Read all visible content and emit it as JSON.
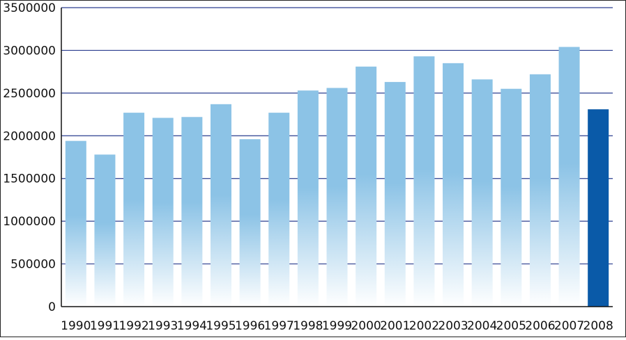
{
  "chart_data": {
    "type": "bar",
    "categories": [
      "1990",
      "1991",
      "1992",
      "1993",
      "1994",
      "1995",
      "1996",
      "1997",
      "1998",
      "1999",
      "2000",
      "2001",
      "2002",
      "2003",
      "2004",
      "2005",
      "2006",
      "2007",
      "2008"
    ],
    "values": [
      1940000,
      1780000,
      2270000,
      2210000,
      2220000,
      2370000,
      1960000,
      2270000,
      2530000,
      2560000,
      2810000,
      2630000,
      2930000,
      2850000,
      2660000,
      2550000,
      2720000,
      3040000,
      2310000
    ],
    "highlight_category": "2008",
    "ylim": [
      0,
      3500000
    ],
    "yticks": [
      0,
      500000,
      1000000,
      1500000,
      2000000,
      2500000,
      3000000,
      3500000
    ],
    "ytick_labels": [
      "0",
      "500000",
      "1000000",
      "1500000",
      "2000000",
      "2500000",
      "3000000",
      "3500000"
    ],
    "grid": "horizontal",
    "colors": {
      "bar_top": "#8cc3e6",
      "bar_bottom": "#ffffff",
      "highlight_bar": "#0a5aa8",
      "gridline": "#2a3d8f",
      "axis": "#111111"
    }
  }
}
